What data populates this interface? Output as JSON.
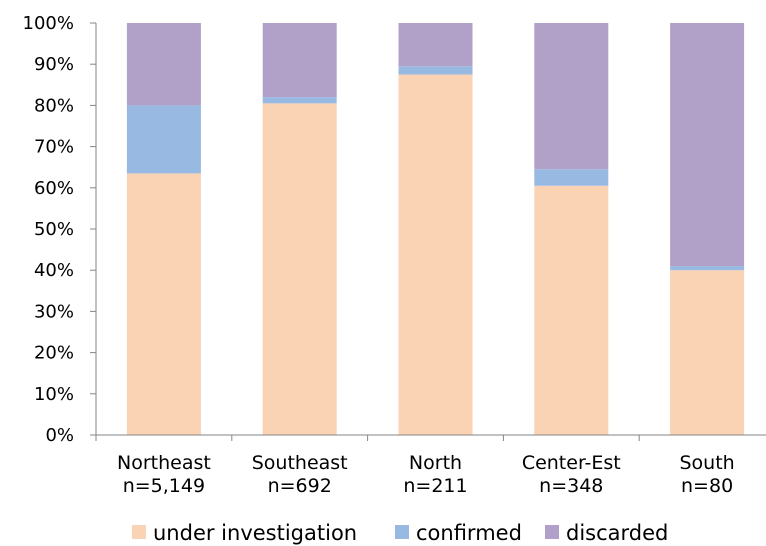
{
  "chart_data": {
    "type": "bar",
    "stacked": true,
    "percent_stacked": true,
    "categories": [
      [
        "Northeast",
        "n=5,149"
      ],
      [
        "Southeast",
        "n=692"
      ],
      [
        "North",
        "n=211"
      ],
      [
        "Center-Est",
        "n=348"
      ],
      [
        "South",
        "n=80"
      ]
    ],
    "series": [
      {
        "name": "under investigation",
        "color": "#FAD2B4",
        "values": [
          63.5,
          80.5,
          87.5,
          60.5,
          40.0
        ]
      },
      {
        "name": "confirmed",
        "color": "#97B9E2",
        "values": [
          16.5,
          1.5,
          2.0,
          4.0,
          1.0
        ]
      },
      {
        "name": "discarded",
        "color": "#B1A0C7",
        "values": [
          20.0,
          18.0,
          10.5,
          35.5,
          59.0
        ]
      }
    ],
    "y_ticks": [
      "0%",
      "10%",
      "20%",
      "30%",
      "40%",
      "50%",
      "60%",
      "70%",
      "80%",
      "90%",
      "100%"
    ],
    "ylim": [
      0,
      100
    ],
    "grid": false,
    "legend_position": "bottom"
  }
}
